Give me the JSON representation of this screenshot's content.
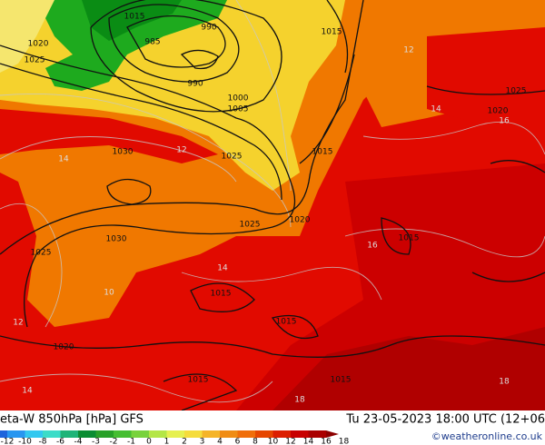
{
  "map": {
    "isobar_labels": [
      "1015",
      "990",
      "1020",
      "985",
      "1025",
      "990",
      "1000",
      "1005",
      "1030",
      "1025",
      "1015",
      "1030",
      "1025",
      "1020",
      "1025",
      "1015",
      "1020",
      "1015",
      "1015",
      "1015",
      "1015",
      "1020",
      "1025",
      "1015"
    ],
    "temperature_labels": [
      "14",
      "12",
      "16",
      "18",
      "14",
      "12",
      "16",
      "14",
      "18",
      "12",
      "10",
      "14"
    ]
  },
  "footer": {
    "title": "eta-W 850hPa [hPa] GFS",
    "datetime": "Tu 23-05-2023 18:00 UTC (12+06",
    "copyright": "©weatheronline.co.uk",
    "scale_labels": [
      -12,
      -10,
      -8,
      -6,
      -4,
      -3,
      -2,
      -1,
      0,
      1,
      2,
      3,
      4,
      6,
      8,
      10,
      12,
      14,
      16,
      18
    ],
    "scale_colors": [
      "#1e64dc",
      "#2896f0",
      "#32c8f0",
      "#3cdcc8",
      "#1eb478",
      "#0a8c32",
      "#28a028",
      "#46be32",
      "#78d23c",
      "#b4e646",
      "#e6f050",
      "#f5dc3c",
      "#f5b428",
      "#f08c14",
      "#f06e0a",
      "#e64600",
      "#dc1e00",
      "#c80000",
      "#aa0000",
      "#8c0000"
    ]
  }
}
